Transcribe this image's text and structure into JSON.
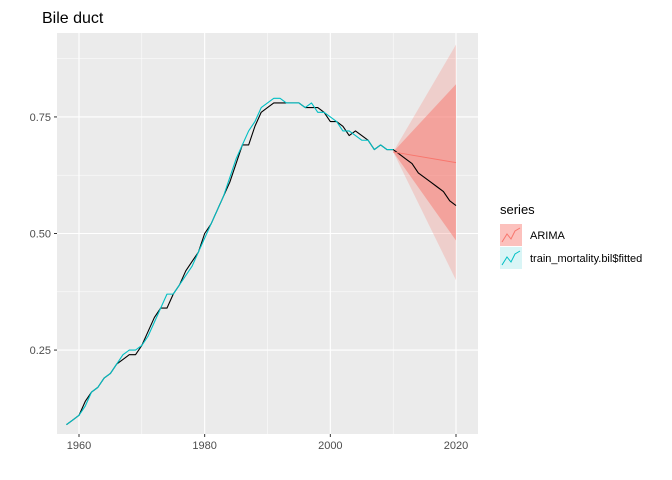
{
  "chart_data": {
    "type": "line",
    "title": "Bile duct",
    "xlabel": "",
    "ylabel": "",
    "xlim": [
      1956.5,
      2023.5
    ],
    "ylim": [
      0.07,
      0.93
    ],
    "x_ticks": [
      1960,
      1980,
      2000,
      2020
    ],
    "x_tick_labels": [
      "1960",
      "1980",
      "2000",
      "2020"
    ],
    "y_ticks": [
      0.25,
      0.5,
      0.75
    ],
    "y_tick_labels": [
      "0.25",
      "0.50",
      "0.75"
    ],
    "grid": true,
    "legend": {
      "title": "series",
      "position": "right",
      "entries": [
        "ARIMA",
        "train_mortality.bil$fitted"
      ]
    },
    "colors": {
      "panel_bg": "#ebebeb",
      "grid": "#ffffff",
      "observed": "#000000",
      "arima": "#f8766d",
      "fitted": "#00bfc4"
    },
    "observed": {
      "x": [
        1958,
        1959,
        1960,
        1961,
        1962,
        1963,
        1964,
        1965,
        1966,
        1967,
        1968,
        1969,
        1970,
        1971,
        1972,
        1973,
        1974,
        1975,
        1976,
        1977,
        1978,
        1979,
        1980,
        1981,
        1982,
        1983,
        1984,
        1985,
        1986,
        1987,
        1988,
        1989,
        1990,
        1991,
        1992,
        1993,
        1994,
        1995,
        1996,
        1997,
        1998,
        1999,
        2000,
        2001,
        2002,
        2003,
        2004,
        2005,
        2006,
        2007,
        2008,
        2009,
        2010,
        2011,
        2012,
        2013,
        2014,
        2015,
        2016,
        2017,
        2018,
        2019,
        2020
      ],
      "y": [
        0.09,
        0.1,
        0.11,
        0.14,
        0.16,
        0.17,
        0.19,
        0.2,
        0.22,
        0.23,
        0.24,
        0.24,
        0.26,
        0.29,
        0.32,
        0.34,
        0.34,
        0.37,
        0.39,
        0.42,
        0.44,
        0.46,
        0.5,
        0.52,
        0.55,
        0.58,
        0.61,
        0.65,
        0.69,
        0.69,
        0.73,
        0.76,
        0.77,
        0.78,
        0.78,
        0.78,
        0.78,
        0.78,
        0.77,
        0.77,
        0.77,
        0.76,
        0.74,
        0.74,
        0.73,
        0.71,
        0.72,
        0.71,
        0.7,
        0.68,
        0.69,
        0.68,
        0.68,
        0.67,
        0.66,
        0.65,
        0.63,
        0.62,
        0.61,
        0.6,
        0.59,
        0.57,
        0.56
      ]
    },
    "series": [
      {
        "name": "ARIMA",
        "x": [
          2010,
          2020
        ],
        "y": [
          0.675,
          0.652
        ],
        "band80_lower": [
          0.675,
          0.485
        ],
        "band80_upper": [
          0.675,
          0.82
        ],
        "band95_lower": [
          0.675,
          0.4
        ],
        "band95_upper": [
          0.675,
          0.905
        ]
      },
      {
        "name": "train_mortality.bil$fitted",
        "x": [
          1958,
          1959,
          1960,
          1961,
          1962,
          1963,
          1964,
          1965,
          1966,
          1967,
          1968,
          1969,
          1970,
          1971,
          1972,
          1973,
          1974,
          1975,
          1976,
          1977,
          1978,
          1979,
          1980,
          1981,
          1982,
          1983,
          1984,
          1985,
          1986,
          1987,
          1988,
          1989,
          1990,
          1991,
          1992,
          1993,
          1994,
          1995,
          1996,
          1997,
          1998,
          1999,
          2000,
          2001,
          2002,
          2003,
          2004,
          2005,
          2006,
          2007,
          2008,
          2009,
          2010
        ],
        "y": [
          0.09,
          0.1,
          0.11,
          0.13,
          0.16,
          0.17,
          0.19,
          0.2,
          0.22,
          0.24,
          0.25,
          0.25,
          0.26,
          0.28,
          0.31,
          0.34,
          0.37,
          0.37,
          0.39,
          0.41,
          0.43,
          0.46,
          0.49,
          0.52,
          0.55,
          0.58,
          0.62,
          0.66,
          0.69,
          0.72,
          0.74,
          0.77,
          0.78,
          0.79,
          0.79,
          0.78,
          0.78,
          0.78,
          0.77,
          0.78,
          0.76,
          0.76,
          0.75,
          0.74,
          0.72,
          0.72,
          0.71,
          0.7,
          0.7,
          0.68,
          0.69,
          0.68,
          0.68
        ]
      }
    ]
  }
}
